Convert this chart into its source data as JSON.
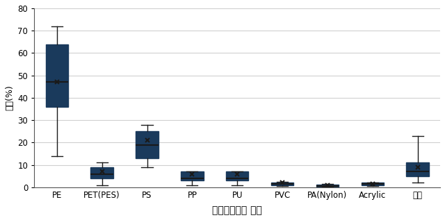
{
  "categories": [
    "PE",
    "PET(PES)",
    "PS",
    "PP",
    "PU",
    "PVC",
    "PA(Nylon)",
    "Acrylic",
    "기타"
  ],
  "xlabel": "미세플라스틱 종류",
  "ylabel": "비율(%)",
  "ylim": [
    0,
    80
  ],
  "yticks": [
    0,
    10,
    20,
    30,
    40,
    50,
    60,
    70,
    80
  ],
  "box_facecolor": "#3475aa",
  "box_edgecolor": "#1a3a5c",
  "whisker_color": "#1a1a1a",
  "median_color": "#1a1a1a",
  "mean_marker": "x",
  "mean_color": "#1a1a1a",
  "box_data": [
    {
      "whislo": 14,
      "q1": 36,
      "med": 47,
      "q3": 64,
      "whishi": 72,
      "mean": 47
    },
    {
      "whislo": 1,
      "q1": 4,
      "med": 6,
      "q3": 9,
      "whishi": 11,
      "mean": 7
    },
    {
      "whislo": 9,
      "q1": 13,
      "med": 19,
      "q3": 25,
      "whishi": 28,
      "mean": 21
    },
    {
      "whislo": 1,
      "q1": 3,
      "med": 4,
      "q3": 7,
      "whishi": 7,
      "mean": 6
    },
    {
      "whislo": 1,
      "q1": 3,
      "med": 4,
      "q3": 7,
      "whishi": 7,
      "mean": 6
    },
    {
      "whislo": 0.5,
      "q1": 1,
      "med": 1.5,
      "q3": 2,
      "whishi": 2.5,
      "mean": 2
    },
    {
      "whislo": 0.2,
      "q1": 0.4,
      "med": 0.7,
      "q3": 1.1,
      "whishi": 1.4,
      "mean": 0.9
    },
    {
      "whislo": 0.5,
      "q1": 1,
      "med": 1.5,
      "q3": 2,
      "whishi": 2,
      "mean": 1.5
    },
    {
      "whislo": 2,
      "q1": 5,
      "med": 7,
      "q3": 11,
      "whishi": 23,
      "mean": 9
    }
  ],
  "figsize": [
    6.4,
    3.17
  ],
  "dpi": 100,
  "grid_color": "#d0d0d0",
  "bg_color": "#ffffff"
}
